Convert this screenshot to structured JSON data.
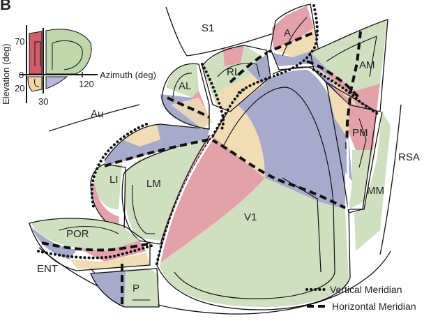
{
  "panel_letter": "B",
  "colors": {
    "red": "#e3a1a9",
    "green": "#cfdfc0",
    "blue": "#a8aacb",
    "beige": "#f0ddb6",
    "key_red": "#d45d6a",
    "key_green": "#bfd7aa",
    "key_blue": "#b7b9dc",
    "key_beige": "#f1d3a4",
    "outline": "#111111"
  },
  "key": {
    "y_axis_label": "Elevation (deg)",
    "x_axis_label": "Azimuth (deg)",
    "ticks": {
      "elev_top": "70",
      "zero": "0",
      "elev_bottom": "20",
      "az_left": "30",
      "az_right": "120"
    }
  },
  "areas": {
    "v1": "V1",
    "lm": "LM",
    "li": "LI",
    "al": "AL",
    "rl": "RL",
    "a": "A",
    "am": "AM",
    "pm": "PM",
    "por": "POR",
    "p": "P",
    "mm": "MM",
    "rsa": "RSA",
    "s1": "S1",
    "au": "Au",
    "ent": "ENT"
  },
  "legend": {
    "vertical": "Vertical Meridian",
    "horizontal": "Horizontal Meridian"
  }
}
